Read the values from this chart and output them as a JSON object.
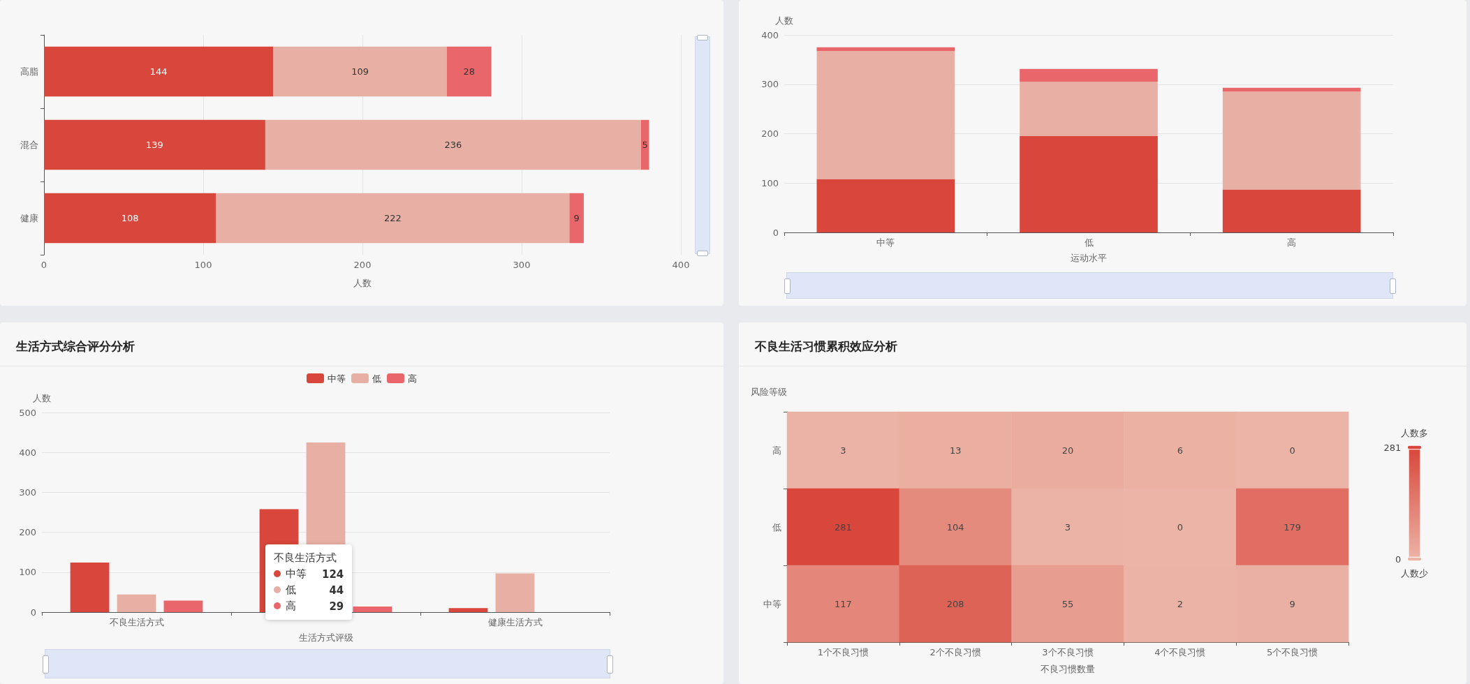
{
  "chart_data": [
    {
      "type": "bar",
      "orientation": "horizontal",
      "stacked": true,
      "categories": [
        "高脂",
        "混合",
        "健康"
      ],
      "xlabel": "人数",
      "xlim": [
        0,
        400
      ],
      "xticks": [
        0,
        100,
        200,
        300,
        400
      ],
      "grid": "x",
      "data_labels": true,
      "series": [
        {
          "color": "#d9463b",
          "values": [
            144,
            139,
            108
          ]
        },
        {
          "color": "#e8b0a4",
          "values": [
            109,
            236,
            222
          ]
        },
        {
          "color": "#e9666a",
          "values": [
            28,
            5,
            9
          ]
        }
      ]
    },
    {
      "type": "bar",
      "stacked": true,
      "categories": [
        "中等",
        "低",
        "高"
      ],
      "xlabel": "运动水平",
      "ylabel": "人数",
      "ylim": [
        0,
        400
      ],
      "yticks": [
        0,
        100,
        200,
        300,
        400
      ],
      "grid": "y",
      "series": [
        {
          "color": "#d9463b",
          "values": [
            108,
            195,
            87
          ]
        },
        {
          "color": "#e8b0a4",
          "values": [
            259,
            110,
            198
          ]
        },
        {
          "color": "#e9666a",
          "values": [
            8,
            26,
            8
          ]
        }
      ]
    },
    {
      "type": "bar",
      "title": "生活方式综合评分分析",
      "categories": [
        "不良生活方式",
        null,
        "健康生活方式"
      ],
      "xlabel": "生活方式评级",
      "ylabel": "人数",
      "ylim": [
        0,
        500
      ],
      "yticks": [
        0,
        100,
        200,
        300,
        400,
        500
      ],
      "grid": "y",
      "legend": "top",
      "series": [
        {
          "name": "中等",
          "color": "#d9463b",
          "values": [
            124,
            258,
            10
          ]
        },
        {
          "name": "低",
          "color": "#e8b0a4",
          "values": [
            44,
            425,
            97
          ]
        },
        {
          "name": "高",
          "color": "#e9666a",
          "values": [
            29,
            14,
            0
          ]
        }
      ],
      "annotations": [
        "不良生活方式",
        "中等",
        "124",
        "低",
        "44",
        "高",
        "29"
      ]
    },
    {
      "type": "heatmap",
      "title": "不良生活习惯累积效应分析",
      "categories": [
        "1个不良习惯",
        "2个不良习惯",
        "3个不良习惯",
        "4个不良习惯",
        "5个不良习惯"
      ],
      "y_categories": [
        "高",
        "低",
        "中等"
      ],
      "xlabel": "不良习惯数量",
      "ylabel": "风险等级",
      "cells": [
        [
          3,
          13,
          20,
          6,
          0
        ],
        [
          281,
          104,
          3,
          0,
          179
        ],
        [
          117,
          208,
          55,
          2,
          9
        ]
      ],
      "clim": [
        0,
        281
      ],
      "cticks": [
        0,
        281
      ],
      "annotations": [
        "人数多",
        "人数少"
      ],
      "data_labels": true
    }
  ]
}
